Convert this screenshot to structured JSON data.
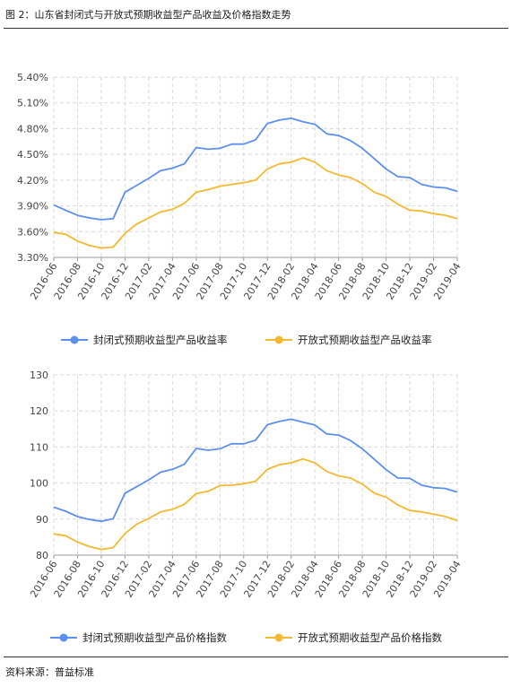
{
  "header": {
    "title": "图 2：山东省封闭式与开放式预期收益型产品收益及价格指数走势"
  },
  "footer": {
    "source": "资料来源：普益标准"
  },
  "colors": {
    "closed": "#5B8FF0",
    "open": "#F5B82E",
    "grid": "#d9d9d9",
    "axis": "#999999"
  },
  "chart_data": [
    {
      "type": "line",
      "categories": [
        "2016-06",
        "2016-08",
        "2016-10",
        "2016-12",
        "2017-02",
        "2017-04",
        "2017-06",
        "2017-08",
        "2017-10",
        "2017-12",
        "2018-02",
        "2018-04",
        "2018-06",
        "2018-08",
        "2018-10",
        "2018-12",
        "2019-02",
        "2019-04"
      ],
      "x": [
        "2016-06",
        "2016-07",
        "2016-08",
        "2016-09",
        "2016-10",
        "2016-11",
        "2016-12",
        "2017-01",
        "2017-02",
        "2017-03",
        "2017-04",
        "2017-05",
        "2017-06",
        "2017-07",
        "2017-08",
        "2017-09",
        "2017-10",
        "2017-11",
        "2017-12",
        "2018-01",
        "2018-02",
        "2018-03",
        "2018-04",
        "2018-05",
        "2018-06",
        "2018-07",
        "2018-08",
        "2018-09",
        "2018-10",
        "2018-11",
        "2018-12",
        "2019-01",
        "2019-02",
        "2019-03",
        "2019-04"
      ],
      "series": [
        {
          "name": "封闭式预期收益型产品收益率",
          "values": [
            3.91,
            3.85,
            3.79,
            3.76,
            3.74,
            3.75,
            4.06,
            4.14,
            4.22,
            4.31,
            4.34,
            4.39,
            4.58,
            4.56,
            4.57,
            4.62,
            4.62,
            4.67,
            4.86,
            4.9,
            4.92,
            4.88,
            4.85,
            4.74,
            4.72,
            4.66,
            4.57,
            4.45,
            4.33,
            4.24,
            4.23,
            4.15,
            4.12,
            4.11,
            4.07
          ]
        },
        {
          "name": "开放式预期收益型产品收益率",
          "values": [
            3.59,
            3.57,
            3.49,
            3.44,
            3.41,
            3.42,
            3.58,
            3.69,
            3.76,
            3.83,
            3.86,
            3.93,
            4.06,
            4.09,
            4.13,
            4.15,
            4.17,
            4.2,
            4.33,
            4.39,
            4.41,
            4.46,
            4.41,
            4.31,
            4.26,
            4.23,
            4.16,
            4.06,
            4.01,
            3.92,
            3.85,
            3.84,
            3.81,
            3.79,
            3.75
          ]
        }
      ],
      "yticks": [
        "3.30%",
        "3.60%",
        "3.90%",
        "4.20%",
        "4.50%",
        "4.80%",
        "5.10%",
        "5.40%"
      ],
      "ylim": [
        3.3,
        5.4
      ],
      "grid": true,
      "legend": "bottom"
    },
    {
      "type": "line",
      "categories": [
        "2016-06",
        "2016-08",
        "2016-10",
        "2016-12",
        "2017-02",
        "2017-04",
        "2017-06",
        "2017-08",
        "2017-10",
        "2017-12",
        "2018-02",
        "2018-04",
        "2018-06",
        "2018-08",
        "2018-10",
        "2018-12",
        "2019-02",
        "2019-04"
      ],
      "x": [
        "2016-06",
        "2016-07",
        "2016-08",
        "2016-09",
        "2016-10",
        "2016-11",
        "2016-12",
        "2017-01",
        "2017-02",
        "2017-03",
        "2017-04",
        "2017-05",
        "2017-06",
        "2017-07",
        "2017-08",
        "2017-09",
        "2017-10",
        "2017-11",
        "2017-12",
        "2018-01",
        "2018-02",
        "2018-03",
        "2018-04",
        "2018-05",
        "2018-06",
        "2018-07",
        "2018-08",
        "2018-09",
        "2018-10",
        "2018-11",
        "2018-12",
        "2019-01",
        "2019-02",
        "2019-03",
        "2019-04"
      ],
      "series": [
        {
          "name": "封闭式预期收益型产品价格指数",
          "values": [
            93.3,
            92.2,
            90.7,
            89.9,
            89.4,
            90.1,
            97.2,
            99.0,
            100.9,
            103.0,
            103.8,
            105.2,
            109.6,
            109.1,
            109.5,
            110.9,
            110.9,
            111.9,
            116.2,
            117.1,
            117.7,
            116.9,
            116.1,
            113.6,
            113.3,
            111.8,
            109.5,
            106.6,
            103.7,
            101.4,
            101.3,
            99.4,
            98.7,
            98.5,
            97.5
          ]
        },
        {
          "name": "开放式预期收益型产品价格指数",
          "values": [
            85.9,
            85.4,
            83.6,
            82.4,
            81.6,
            82.1,
            86.0,
            88.6,
            90.2,
            92.0,
            92.7,
            94.1,
            97.1,
            97.7,
            99.3,
            99.4,
            99.8,
            100.5,
            103.8,
            105.1,
            105.6,
            106.7,
            105.6,
            103.2,
            102.0,
            101.4,
            99.7,
            97.2,
            96.1,
            93.9,
            92.4,
            92.0,
            91.4,
            90.7,
            89.6
          ]
        }
      ],
      "yticks": [
        "80",
        "90",
        "100",
        "110",
        "120",
        "130"
      ],
      "ylim": [
        80,
        130
      ],
      "grid": true,
      "legend": "bottom"
    }
  ]
}
